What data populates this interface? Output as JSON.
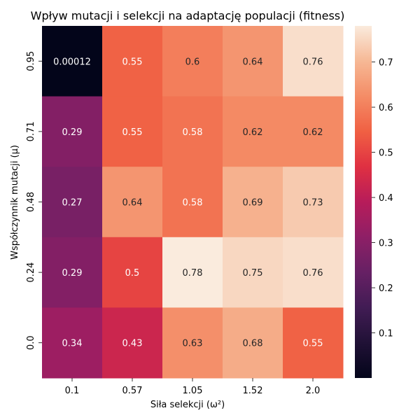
{
  "chart_data": {
    "type": "heatmap",
    "title": "Wpływ mutacji i selekcji na adaptację populacji (fitness)",
    "xlabel": "Siła selekcji (ω²)",
    "ylabel": "Współczynnik mutacji (μ)",
    "x_categories": [
      "0.1",
      "0.57",
      "1.05",
      "1.52",
      "2.0"
    ],
    "y_categories": [
      "0.95",
      "0.71",
      "0.48",
      "0.24",
      "0.0"
    ],
    "values": [
      [
        0.00012,
        0.55,
        0.6,
        0.64,
        0.76
      ],
      [
        0.29,
        0.55,
        0.58,
        0.62,
        0.62
      ],
      [
        0.27,
        0.64,
        0.58,
        0.69,
        0.73
      ],
      [
        0.29,
        0.5,
        0.78,
        0.75,
        0.76
      ],
      [
        0.34,
        0.43,
        0.63,
        0.68,
        0.55
      ]
    ],
    "cell_labels": [
      [
        "0.00012",
        "0.55",
        "0.6",
        "0.64",
        "0.76"
      ],
      [
        "0.29",
        "0.55",
        "0.58",
        "0.62",
        "0.62"
      ],
      [
        "0.27",
        "0.64",
        "0.58",
        "0.69",
        "0.73"
      ],
      [
        "0.29",
        "0.5",
        "0.78",
        "0.75",
        "0.76"
      ],
      [
        "0.34",
        "0.43",
        "0.63",
        "0.68",
        "0.55"
      ]
    ],
    "colorbar": {
      "colormap": "rocket",
      "range": [
        0.00012,
        0.78
      ],
      "ticks": [
        "0.1",
        "0.2",
        "0.3",
        "0.4",
        "0.5",
        "0.6",
        "0.7"
      ],
      "tick_values": [
        0.1,
        0.2,
        0.3,
        0.4,
        0.5,
        0.6,
        0.7
      ]
    },
    "grid": false,
    "legend": "colorbar-right"
  }
}
